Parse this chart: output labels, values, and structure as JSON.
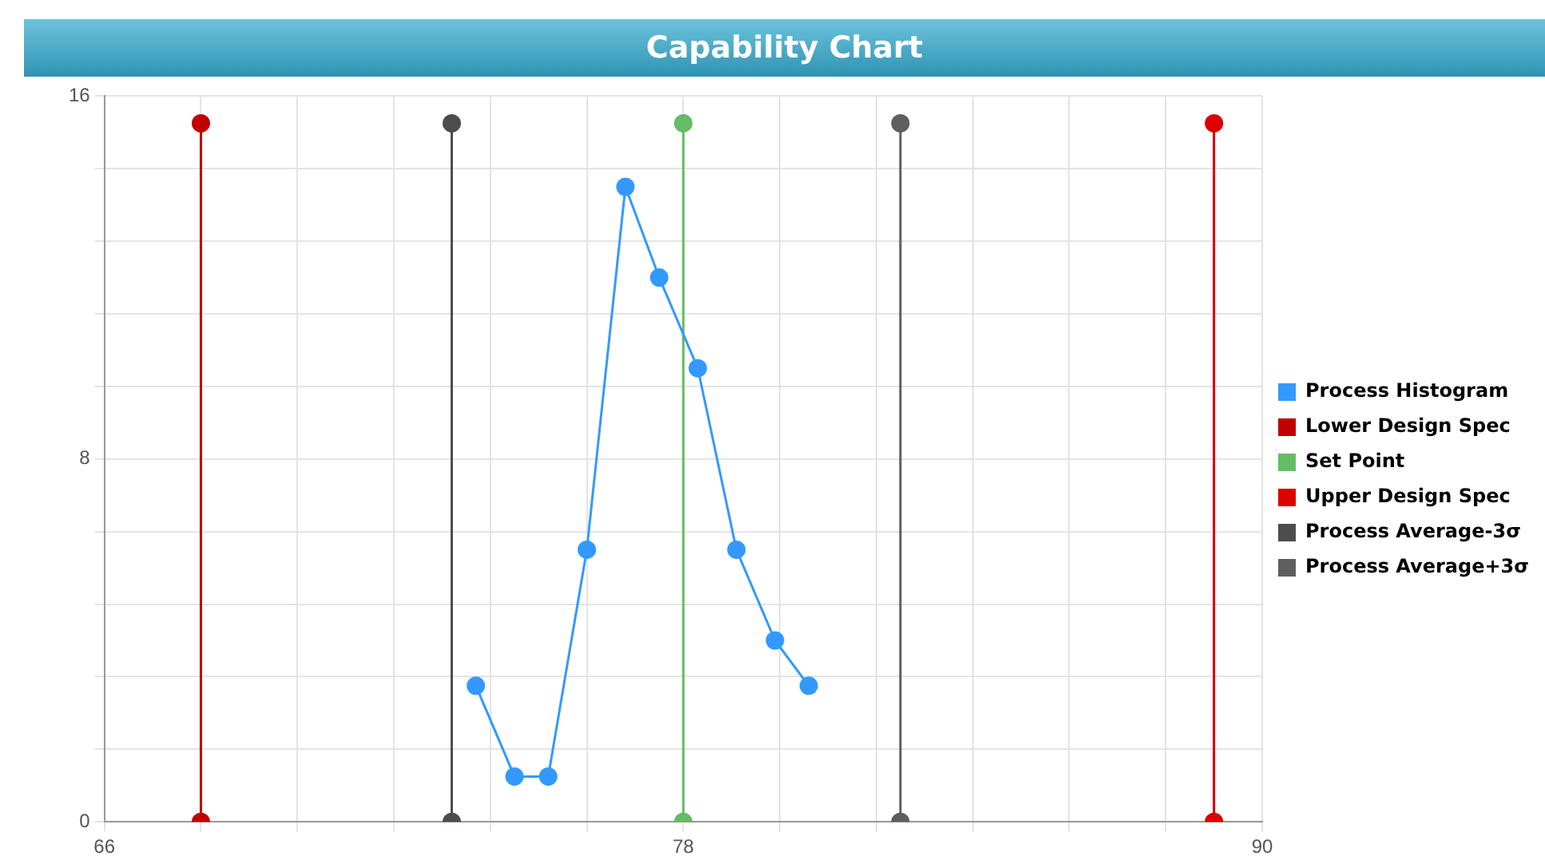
{
  "chart_data": {
    "type": "line",
    "title": "Capability Chart",
    "xlim": [
      66,
      90
    ],
    "xticks": [
      66,
      {
        "value": 68,
        "label": null
      },
      {
        "value": 70,
        "label": null
      },
      {
        "value": 72,
        "label": null
      },
      {
        "value": 74,
        "label": null
      },
      {
        "value": 76,
        "label": null
      },
      78,
      {
        "value": 80,
        "label": null
      },
      {
        "value": 82,
        "label": null
      },
      {
        "value": 84,
        "label": null
      },
      {
        "value": 86,
        "label": null
      },
      {
        "value": 88,
        "label": null
      },
      90
    ],
    "ylim": [
      0,
      16
    ],
    "yticks": [
      0,
      {
        "value": 1.6,
        "label": null
      },
      {
        "value": 3.2,
        "label": null
      },
      {
        "value": 4.8,
        "label": null
      },
      {
        "value": 6.4,
        "label": null
      },
      8,
      {
        "value": 9.6,
        "label": null
      },
      {
        "value": 11.2,
        "label": null
      },
      {
        "value": 12.8,
        "label": null
      },
      {
        "value": 14.4,
        "label": null
      },
      16
    ],
    "grid": true,
    "legend": "right",
    "marker": "circle",
    "line_style": "solid",
    "series": [
      {
        "name": "Process Histogram",
        "color": "#3399ff",
        "x": [
          73.7,
          74.5,
          75.2,
          76.0,
          76.8,
          77.5,
          78.3,
          79.1,
          79.9,
          80.6
        ],
        "values": [
          3,
          1,
          1,
          6,
          14,
          12,
          10,
          6,
          4,
          3
        ]
      },
      {
        "name": "Lower Design Spec",
        "color": "#c00000",
        "x": [
          68,
          68
        ],
        "values": [
          0,
          15.4
        ]
      },
      {
        "name": "Set Point",
        "color": "#66bb66",
        "x": [
          78,
          78
        ],
        "values": [
          0,
          15.4
        ]
      },
      {
        "name": "Upper Design Spec",
        "color": "#dd0000",
        "x": [
          89,
          89
        ],
        "values": [
          0,
          15.4
        ]
      },
      {
        "name": "Process Average-3σ",
        "color": "#4d4d4d",
        "x": [
          73.2,
          73.2
        ],
        "values": [
          0,
          15.4
        ]
      },
      {
        "name": "Process Average+3σ",
        "color": "#5e5e5e",
        "x": [
          82.5,
          82.5
        ],
        "values": [
          0,
          15.4
        ]
      }
    ]
  }
}
